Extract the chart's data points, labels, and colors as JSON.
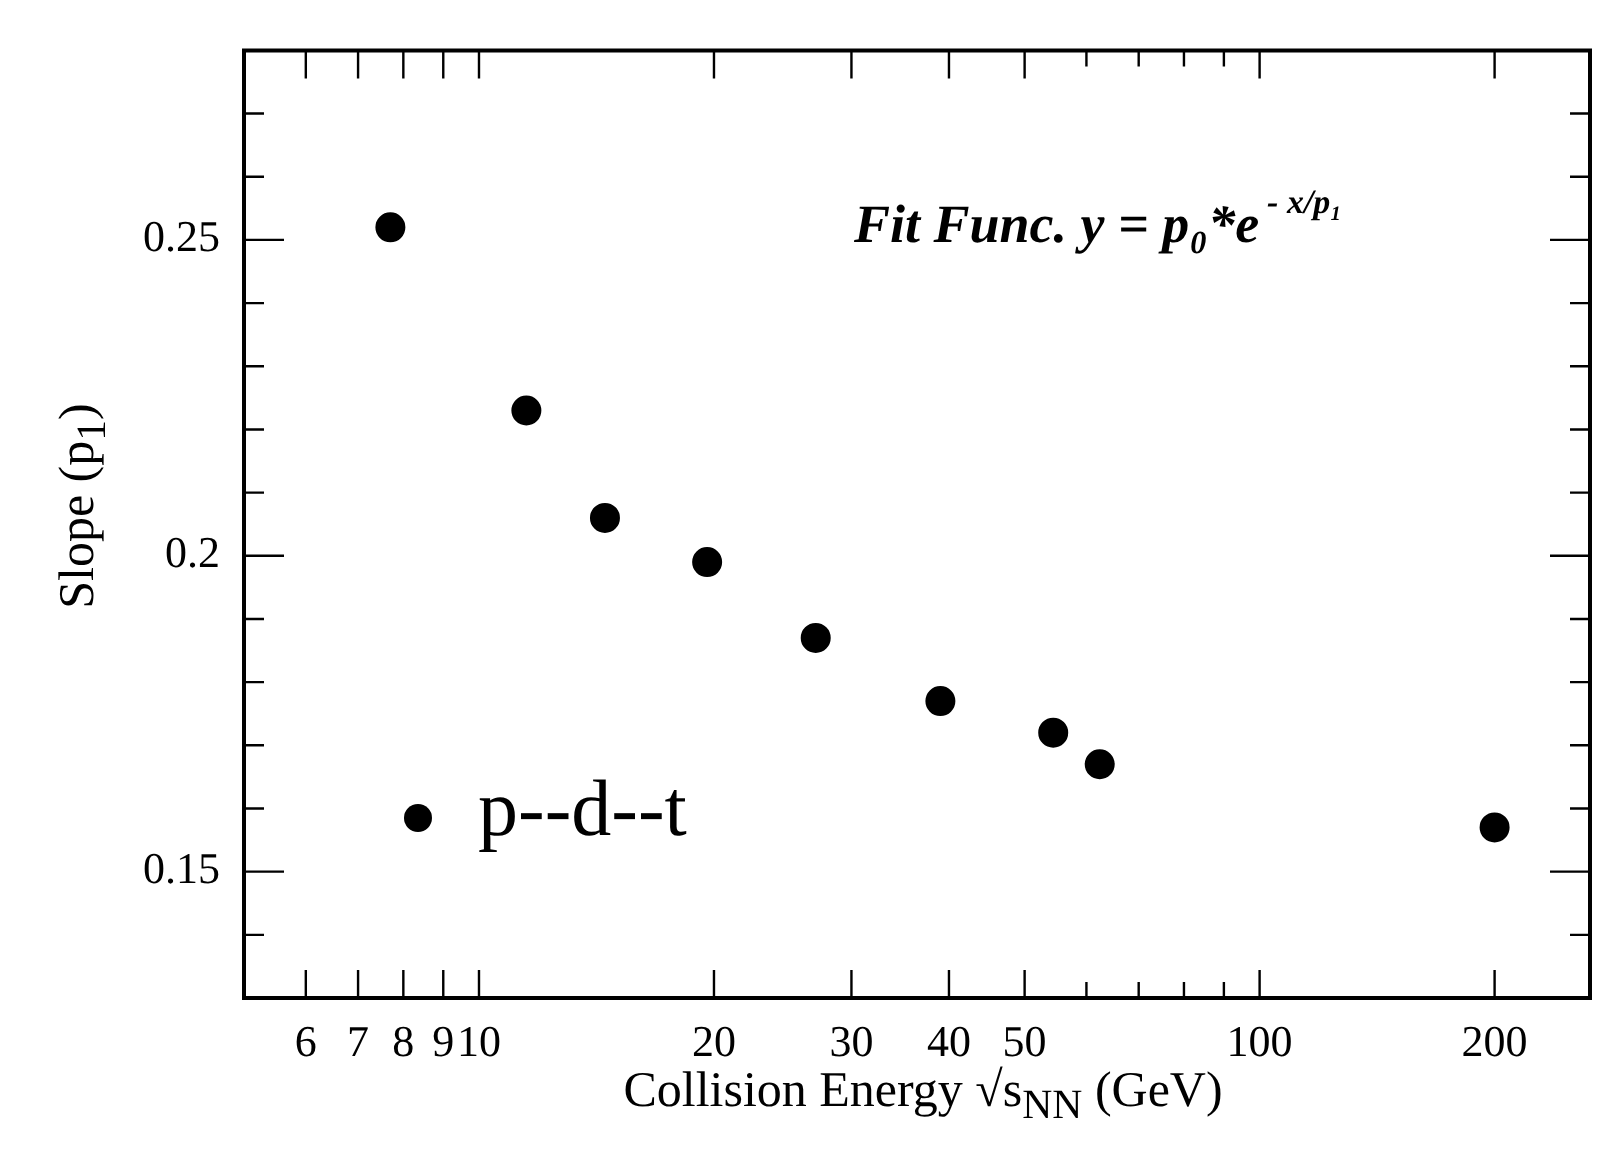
{
  "chart_data": {
    "type": "scatter",
    "xlabel": "Collision Energy √s$_{NN}$ (GeV)",
    "ylabel": "Slope (p$_{1}$)",
    "annotations": [
      "Fit Func. y = p₀*e$^{- x/p₁}$"
    ],
    "x": [
      7.7,
      11.5,
      14.5,
      19.6,
      27,
      39,
      54.4,
      62.4,
      200
    ],
    "series": [
      {
        "name": "p--d--t",
        "color": "#000000",
        "values": [
          0.252,
          0.223,
          0.206,
          0.199,
          0.187,
          0.177,
          0.172,
          0.167,
          0.157
        ]
      }
    ],
    "log": "x",
    "xlim": [
      5,
      265
    ],
    "xticks": [
      6,
      7,
      8,
      9,
      10,
      20,
      30,
      40,
      50,
      {
        "value": 60,
        "label": null
      },
      {
        "value": 70,
        "label": null
      },
      {
        "value": 80,
        "label": null
      },
      {
        "value": 90,
        "label": null
      },
      100,
      200
    ],
    "ylim": [
      0.13,
      0.28
    ],
    "yticks": [
      {
        "value": 0.14,
        "label": null
      },
      0.15,
      {
        "value": 0.16,
        "label": null
      },
      {
        "value": 0.17,
        "label": null
      },
      {
        "value": 0.18,
        "label": null
      },
      {
        "value": 0.19,
        "label": null
      },
      0.2,
      {
        "value": 0.21,
        "label": null
      },
      {
        "value": 0.22,
        "label": null
      },
      {
        "value": 0.23,
        "label": null
      },
      {
        "value": 0.24,
        "label": null
      },
      0.25,
      {
        "value": 0.26,
        "label": null
      },
      {
        "value": 0.27,
        "label": null
      }
    ],
    "grid": false,
    "legend": "bottom left",
    "marker": "circle"
  }
}
